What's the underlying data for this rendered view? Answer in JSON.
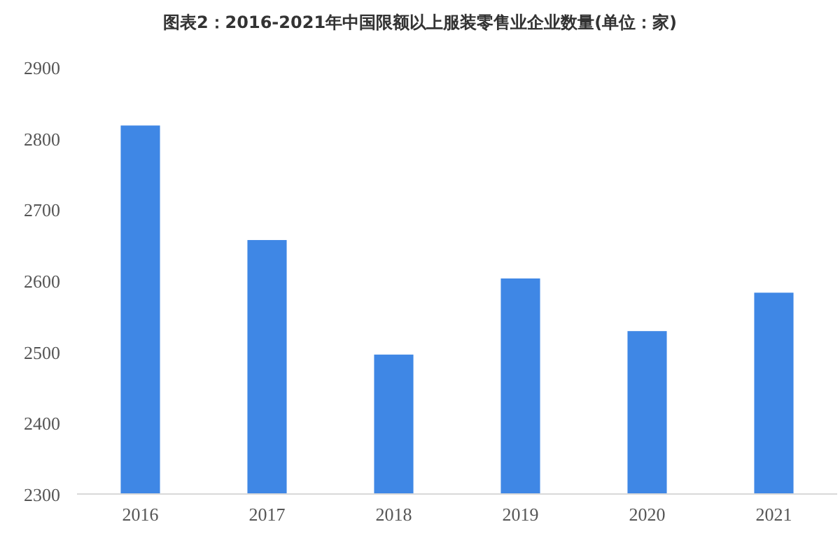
{
  "chart_data": {
    "type": "bar",
    "title": "图表2：2016-2021年中国限额以上服装零售业企业数量(单位：家)",
    "categories": [
      "2016",
      "2017",
      "2018",
      "2019",
      "2020",
      "2021"
    ],
    "values": [
      2818,
      2657,
      2496,
      2603,
      2529,
      2583
    ],
    "color": "#3f87e5",
    "ylim": [
      2300,
      2900
    ],
    "yticks": [
      2300,
      2400,
      2500,
      2600,
      2700,
      2800,
      2900
    ],
    "grid": false
  }
}
